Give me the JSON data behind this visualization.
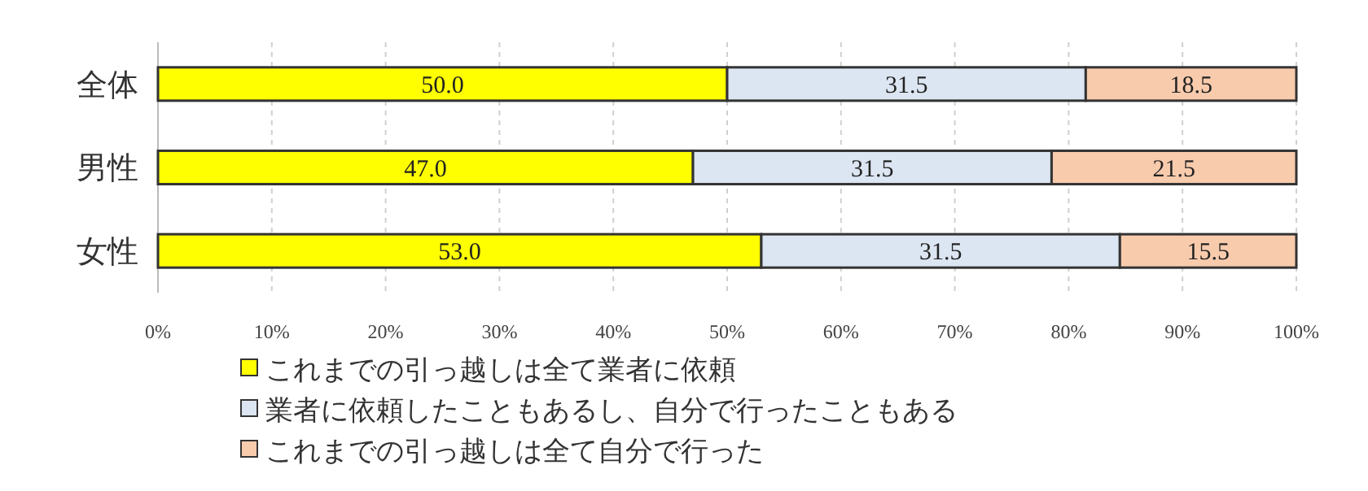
{
  "chart_data": {
    "type": "bar",
    "orientation": "horizontal",
    "stacked": true,
    "categories": [
      "全体",
      "男性",
      "女性"
    ],
    "series": [
      {
        "name": "これまでの引っ越しは全て業者に依頼",
        "color": "#ffff00",
        "values": [
          50.0,
          47.0,
          53.0
        ],
        "value_labels": [
          "50.0",
          "47.0",
          "53.0"
        ]
      },
      {
        "name": "業者に依頼したこともあるし、自分で行ったこともある",
        "color": "#dce6f2",
        "values": [
          31.5,
          31.5,
          31.5
        ],
        "value_labels": [
          "31.5",
          "31.5",
          "31.5"
        ]
      },
      {
        "name": "これまでの引っ越しは全て自分で行った",
        "color": "#f8cbad",
        "values": [
          18.5,
          21.5,
          15.5
        ],
        "value_labels": [
          "18.5",
          "21.5",
          "15.5"
        ]
      }
    ],
    "xlim": [
      0,
      100
    ],
    "xticks": [
      {
        "value": 0,
        "label": "0%"
      },
      {
        "value": 10,
        "label": "10%"
      },
      {
        "value": 20,
        "label": "20%"
      },
      {
        "value": 30,
        "label": "30%"
      },
      {
        "value": 40,
        "label": "40%"
      },
      {
        "value": 50,
        "label": "50%"
      },
      {
        "value": 60,
        "label": "60%"
      },
      {
        "value": 70,
        "label": "70%"
      },
      {
        "value": 80,
        "label": "80%"
      },
      {
        "value": 90,
        "label": "90%"
      },
      {
        "value": 100,
        "label": "100%"
      }
    ],
    "grid": "x",
    "legend": "bottom"
  }
}
